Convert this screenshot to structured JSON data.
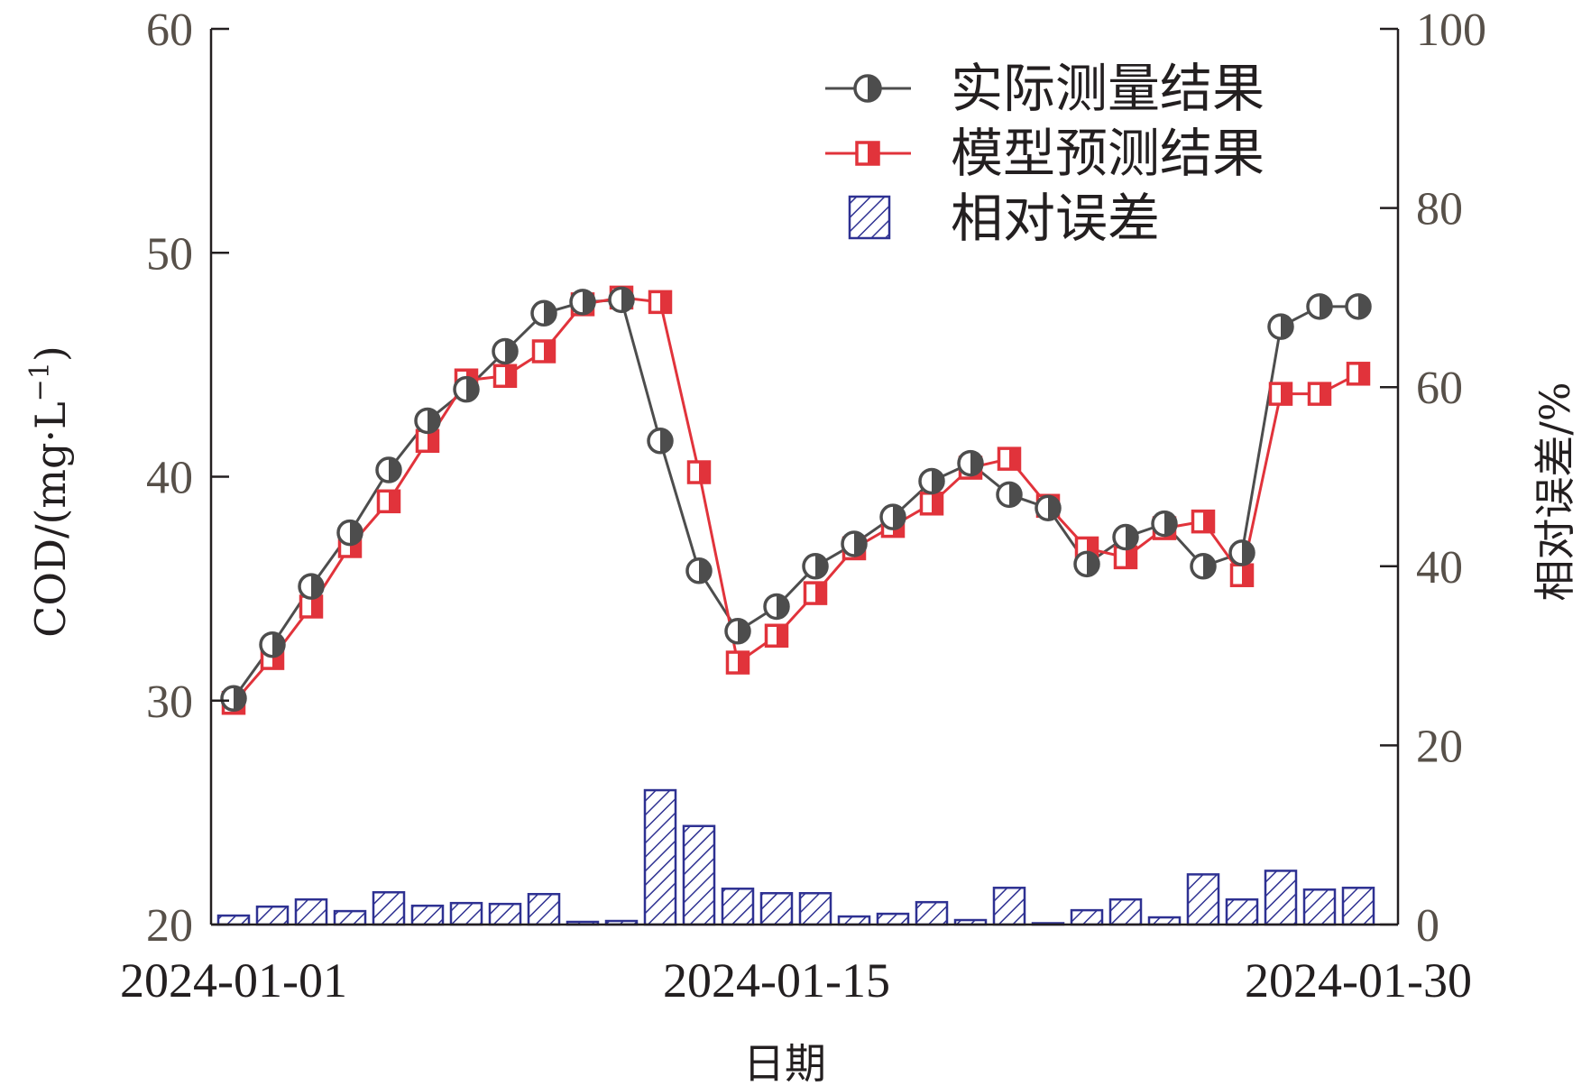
{
  "chart_data": {
    "type": "bar+line",
    "xlabel": "日期",
    "ylabel_left": "COD/(mg·L",
    "ylabel_left_sup": "−1",
    "ylabel_left_close": ")",
    "ylabel_right": "相对误差/%",
    "ylim_left": [
      20,
      60
    ],
    "yticks_left": [
      "20",
      "30",
      "40",
      "50",
      "60"
    ],
    "ylim_right": [
      0,
      100
    ],
    "yticks_right": [
      "0",
      "20",
      "40",
      "60",
      "80",
      "100"
    ],
    "x_tick_labels": [
      "2024-01-01",
      "2024-01-15",
      "2024-01-30"
    ],
    "x_dates": [
      "2024-01-01",
      "2024-01-02",
      "2024-01-03",
      "2024-01-04",
      "2024-01-05",
      "2024-01-06",
      "2024-01-07",
      "2024-01-08",
      "2024-01-09",
      "2024-01-10",
      "2024-01-11",
      "2024-01-12",
      "2024-01-13",
      "2024-01-14",
      "2024-01-15",
      "2024-01-16",
      "2024-01-17",
      "2024-01-18",
      "2024-01-19",
      "2024-01-20",
      "2024-01-21",
      "2024-01-22",
      "2024-01-23",
      "2024-01-24",
      "2024-01-25",
      "2024-01-26",
      "2024-01-27",
      "2024-01-28",
      "2024-01-29",
      "2024-01-30"
    ],
    "legend_position": "top-right",
    "series": [
      {
        "name": "实际测量结果",
        "kind": "line",
        "color": "#4d4d4d",
        "marker": "half-filled-circle",
        "values": [
          30.1,
          32.5,
          35.1,
          37.5,
          40.3,
          42.5,
          43.9,
          45.6,
          47.3,
          47.8,
          47.9,
          41.6,
          35.8,
          33.1,
          34.2,
          36.0,
          37.0,
          38.2,
          39.8,
          40.6,
          39.2,
          38.6,
          36.1,
          37.3,
          37.9,
          36.0,
          36.6,
          46.7,
          47.6,
          47.6
        ]
      },
      {
        "name": "模型预测结果",
        "kind": "line",
        "color": "#e1333b",
        "marker": "half-filled-square",
        "values": [
          29.9,
          31.9,
          34.2,
          36.9,
          38.9,
          41.6,
          44.3,
          44.5,
          45.6,
          47.7,
          48.0,
          47.8,
          40.2,
          31.7,
          32.9,
          34.8,
          36.8,
          37.8,
          38.8,
          40.4,
          40.8,
          38.7,
          36.8,
          36.4,
          37.7,
          38.0,
          35.6,
          43.7,
          43.7,
          44.6
        ]
      },
      {
        "name": "相对误差",
        "kind": "bar",
        "axis": "right",
        "color": "#2e3192",
        "values": [
          1.0,
          2.0,
          2.8,
          1.5,
          3.6,
          2.1,
          2.4,
          2.3,
          3.4,
          0.3,
          0.4,
          15.0,
          11.0,
          4.0,
          3.5,
          3.5,
          0.9,
          1.2,
          2.5,
          0.5,
          4.1,
          0.1,
          1.6,
          2.8,
          0.8,
          5.6,
          2.8,
          6.0,
          3.9,
          4.1
        ]
      }
    ]
  }
}
